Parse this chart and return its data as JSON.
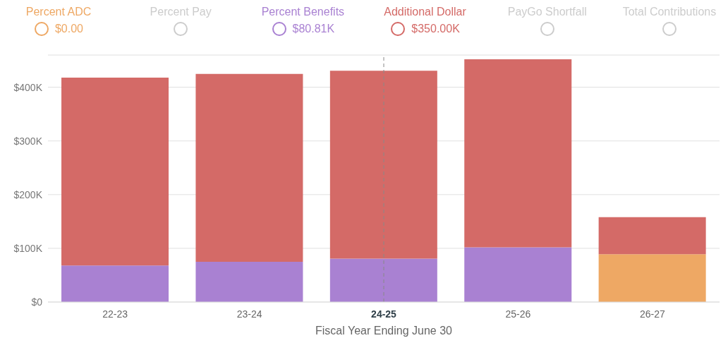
{
  "chart_data": {
    "type": "bar",
    "stacked": true,
    "xlabel": "Fiscal Year Ending June 30",
    "categories": [
      "22-23",
      "23-24",
      "24-25",
      "25-26",
      "26-27"
    ],
    "series": [
      {
        "name": "Percent ADC",
        "color": "#eea864",
        "values": [
          0,
          0,
          0,
          0,
          89
        ]
      },
      {
        "name": "Percent Pay",
        "color": "#cccccc",
        "values": [
          null,
          null,
          null,
          null,
          null
        ]
      },
      {
        "name": "Percent Benefits",
        "color": "#a981d2",
        "values": [
          68,
          75,
          80.81,
          102,
          null
        ]
      },
      {
        "name": "Additional Dollar",
        "color": "#d46a67",
        "values": [
          350,
          350,
          350,
          350,
          69
        ]
      },
      {
        "name": "PayGo Shortfall",
        "color": "#cccccc",
        "values": [
          null,
          null,
          null,
          null,
          null
        ]
      },
      {
        "name": "Total Contributions",
        "color": "#cccccc",
        "values": [
          null,
          null,
          null,
          null,
          null
        ]
      }
    ],
    "annotations": [
      "$0.00",
      "$80.81K",
      "$350.00K"
    ],
    "ref_lines": [
      {
        "axis": "x",
        "value": "24-25",
        "color": "#888888",
        "line_style": "dashed"
      }
    ],
    "ylim": [
      0,
      460
    ],
    "yticks": [
      {
        "value": 0,
        "label": "$0"
      },
      {
        "value": 100,
        "label": "$100K"
      },
      {
        "value": 200,
        "label": "$200K"
      },
      {
        "value": 300,
        "label": "$300K"
      },
      {
        "value": 400,
        "label": "$400K"
      }
    ],
    "grid": "y",
    "legend": "top"
  }
}
